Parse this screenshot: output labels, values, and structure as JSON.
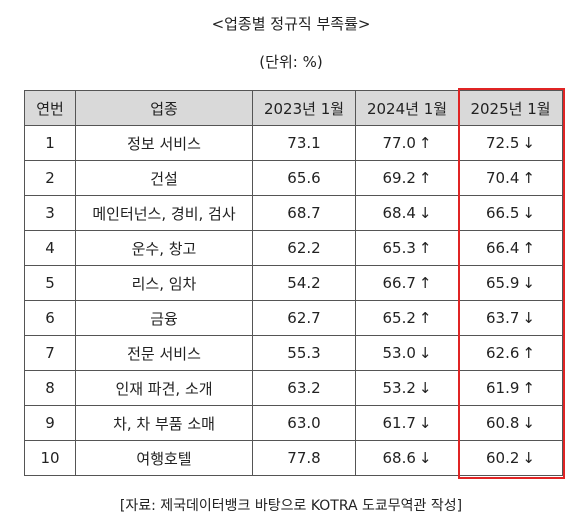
{
  "title": "<업종별 정규직 부족률>",
  "unit": "(단위: %)",
  "table": {
    "headers": [
      "연번",
      "업종",
      "2023년 1월",
      "2024년 1월",
      "2025년 1월"
    ],
    "rows": [
      {
        "no": "1",
        "industry": "정보 서비스",
        "y2023": "73.1",
        "y2024": "77.0",
        "y2024_arrow": "↑",
        "y2025": "72.5",
        "y2025_arrow": "↓"
      },
      {
        "no": "2",
        "industry": "건설",
        "y2023": "65.6",
        "y2024": "69.2",
        "y2024_arrow": "↑",
        "y2025": "70.4",
        "y2025_arrow": "↑"
      },
      {
        "no": "3",
        "industry": "메인터넌스, 경비, 검사",
        "y2023": "68.7",
        "y2024": "68.4",
        "y2024_arrow": "↓",
        "y2025": "66.5",
        "y2025_arrow": "↓"
      },
      {
        "no": "4",
        "industry": "운수, 창고",
        "y2023": "62.2",
        "y2024": "65.3",
        "y2024_arrow": "↑",
        "y2025": "66.4",
        "y2025_arrow": "↑"
      },
      {
        "no": "5",
        "industry": "리스, 임차",
        "y2023": "54.2",
        "y2024": "66.7",
        "y2024_arrow": "↑",
        "y2025": "65.9",
        "y2025_arrow": "↓"
      },
      {
        "no": "6",
        "industry": "금융",
        "y2023": "62.7",
        "y2024": "65.2",
        "y2024_arrow": "↑",
        "y2025": "63.7",
        "y2025_arrow": "↓"
      },
      {
        "no": "7",
        "industry": "전문 서비스",
        "y2023": "55.3",
        "y2024": "53.0",
        "y2024_arrow": "↓",
        "y2025": "62.6",
        "y2025_arrow": "↑"
      },
      {
        "no": "8",
        "industry": "인재 파견, 소개",
        "y2023": "63.2",
        "y2024": "53.2",
        "y2024_arrow": "↓",
        "y2025": "61.9",
        "y2025_arrow": "↑"
      },
      {
        "no": "9",
        "industry": "차, 차 부품 소매",
        "y2023": "63.0",
        "y2024": "61.7",
        "y2024_arrow": "↓",
        "y2025": "60.8",
        "y2025_arrow": "↓"
      },
      {
        "no": "10",
        "industry": "여행호텔",
        "y2023": "77.8",
        "y2024": "68.6",
        "y2024_arrow": "↓",
        "y2025": "60.2",
        "y2025_arrow": "↓"
      }
    ]
  },
  "colors": {
    "highlight_border": "#e02424",
    "header_bg": "#d9d9d9"
  },
  "source": "[자료: 제국데이터뱅크 바탕으로 KOTRA 도쿄무역관 작성]"
}
